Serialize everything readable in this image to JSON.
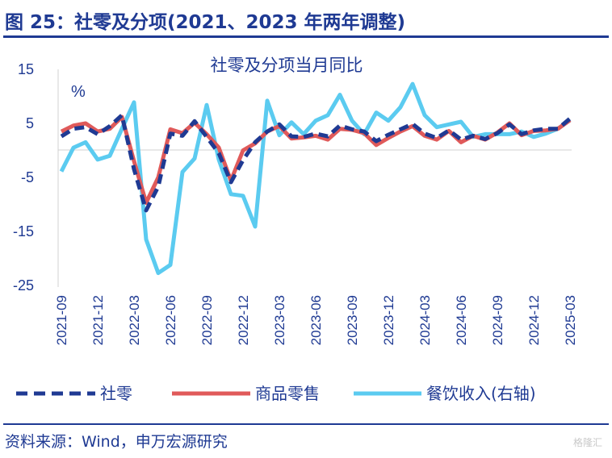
{
  "figure_title": "图 25：社零及分项(2021、2023 年两年调整)",
  "source": "资料来源：Wind，申万宏源研究",
  "watermark": "格隆汇",
  "colors": {
    "accent": "#1f3a93",
    "social_retail": "#1f3a93",
    "goods_retail": "#e05a5a",
    "catering": "#5bcbf0"
  },
  "chart_data": {
    "type": "line",
    "title": "社零及分项当月同比",
    "ylabel": "%",
    "ylim": [
      -25,
      15
    ],
    "yticks": [
      15,
      5,
      -5,
      -15,
      -25
    ],
    "grid": false,
    "legend_position": "bottom",
    "x": [
      "2021-09",
      "2021-10",
      "2021-11",
      "2021-12",
      "2022-01",
      "2022-02",
      "2022-03",
      "2022-04",
      "2022-05",
      "2022-06",
      "2022-07",
      "2022-08",
      "2022-09",
      "2022-10",
      "2022-11",
      "2022-12",
      "2023-01",
      "2023-02",
      "2023-03",
      "2023-04",
      "2023-05",
      "2023-06",
      "2023-07",
      "2023-08",
      "2023-09",
      "2023-10",
      "2023-11",
      "2023-12",
      "2024-01",
      "2024-02",
      "2024-03",
      "2024-04",
      "2024-05",
      "2024-06",
      "2024-07",
      "2024-08",
      "2024-09",
      "2024-10",
      "2024-11",
      "2024-12",
      "2025-01",
      "2025-02",
      "2025-03"
    ],
    "xticks": [
      "2021-09",
      "2021-12",
      "2022-03",
      "2022-06",
      "2022-09",
      "2022-12",
      "2023-03",
      "2023-06",
      "2023-09",
      "2023-12",
      "2024-03",
      "2024-06",
      "2024-09",
      "2024-12",
      "2025-03"
    ],
    "series": [
      {
        "name": "社零",
        "axis": "left",
        "style": "dashed",
        "values": [
          2.6,
          4.0,
          4.3,
          3.0,
          4.5,
          6.5,
          -3.5,
          -11.1,
          -6.7,
          3.1,
          2.7,
          5.4,
          2.5,
          -0.5,
          -5.9,
          -1.8,
          1.5,
          3.5,
          4.8,
          2.6,
          2.5,
          3.1,
          2.6,
          4.6,
          3.9,
          3.5,
          1.7,
          2.9,
          3.9,
          4.9,
          3.1,
          2.3,
          3.7,
          2.0,
          2.7,
          2.1,
          3.2,
          4.8,
          3.0,
          3.7,
          4.0,
          4.0,
          5.9
        ]
      },
      {
        "name": "商品零售",
        "axis": "left",
        "style": "solid",
        "values": [
          3.5,
          4.6,
          5.0,
          3.5,
          4.0,
          6.2,
          -2.0,
          -9.7,
          -5.0,
          3.9,
          3.2,
          5.1,
          3.0,
          0.5,
          -5.6,
          0.0,
          1.3,
          3.5,
          4.5,
          2.2,
          2.4,
          2.7,
          2.0,
          4.0,
          3.8,
          3.2,
          1.0,
          2.3,
          3.5,
          4.5,
          2.7,
          2.0,
          3.6,
          1.5,
          2.7,
          2.0,
          3.3,
          5.0,
          2.8,
          3.6,
          3.7,
          4.0,
          5.6
        ]
      },
      {
        "name": "餐饮收入(右轴)",
        "axis": "right",
        "style": "solid",
        "values": [
          -3.9,
          0.5,
          1.5,
          -1.7,
          -1.0,
          4.0,
          8.9,
          -16.5,
          -22.7,
          -21.2,
          -4.0,
          -1.5,
          8.4,
          -1.7,
          -8.1,
          -8.4,
          -14.1,
          9.2,
          2.8,
          5.2,
          3.0,
          5.5,
          6.5,
          10.3,
          5.5,
          3.0,
          7.0,
          5.5,
          8.0,
          12.3,
          6.5,
          4.3,
          4.8,
          5.3,
          2.5,
          3.0,
          3.0,
          3.0,
          3.5,
          2.5,
          3.1,
          4.0,
          5.6
        ]
      }
    ]
  },
  "legend": [
    {
      "label": "社零"
    },
    {
      "label": "商品零售"
    },
    {
      "label": "餐饮收入(右轴)"
    }
  ]
}
